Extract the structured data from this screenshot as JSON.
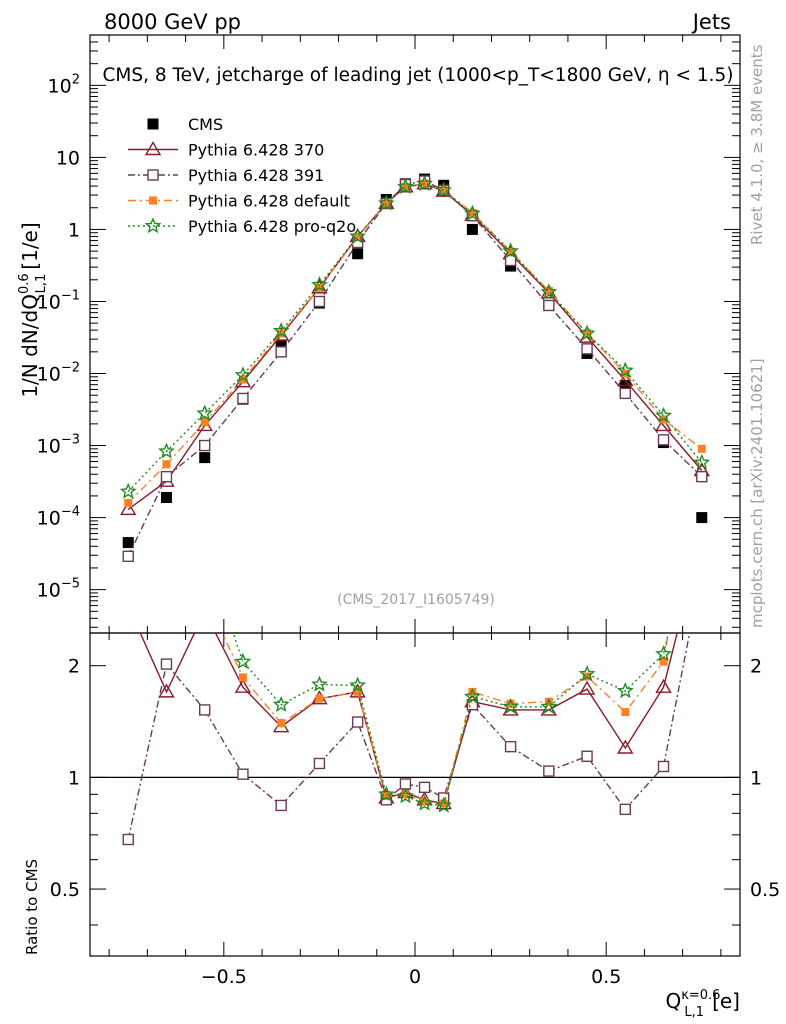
{
  "header": {
    "left": "8000 GeV pp",
    "right": "Jets",
    "title": "CMS, 8 TeV, jetcharge of leading jet (1000<p_T<1800 GeV, η < 1.5)",
    "rivet": "Rivet 4.1.0, ≥ 3.8M events",
    "mcplots": "mcplots.cern.ch [arXiv:2401.10621]",
    "analysis": "(CMS_2017_I1605749)"
  },
  "axes": {
    "ylabel_main": "1/N dN/dQ",
    "ylabel_main_sup": "0.6",
    "ylabel_main_sub": "L,1",
    "ylabel_main_unit": "[1/e]",
    "ylabel_ratio": "Ratio to CMS",
    "xlabel": "Q",
    "xlabel_sup": "κ=0.6",
    "xlabel_sub": "L,1",
    "xlabel_unit": "[e]"
  },
  "colors": {
    "data": "#000000",
    "p370": "#8b1a2b",
    "p391": "#6b3a55",
    "pdefault": "#ff7f24",
    "proq2": "#1f8b1f"
  },
  "chart_data": {
    "type": "scatter",
    "x": [
      -0.75,
      -0.65,
      -0.55,
      -0.45,
      -0.35,
      -0.25,
      -0.15,
      -0.075,
      -0.025,
      0.025,
      0.075,
      0.15,
      0.25,
      0.35,
      0.45,
      0.55,
      0.65,
      0.75
    ],
    "xlim": [
      -0.85,
      0.85
    ],
    "ylim_main": [
      2.5e-06,
      500
    ],
    "yscale_main": "log",
    "ylim_ratio": [
      0.33,
      2.45
    ],
    "yscale_ratio": "log",
    "xticks": [
      -0.5,
      0,
      0.5
    ],
    "xtick_labels": [
      "−0.5",
      "0",
      "0.5"
    ],
    "yticks_main": [
      1e-05,
      0.0001,
      0.001,
      0.01,
      0.1,
      1,
      10,
      100
    ],
    "ytick_labels_main": [
      "10^-5",
      "10^-4",
      "10^-3",
      "10^-2",
      "10^-1",
      "1",
      "10",
      "10^2"
    ],
    "yticks_ratio": [
      0.5,
      1,
      2
    ],
    "ytick_labels_ratio": [
      "0.5",
      "1",
      "2"
    ],
    "series": [
      {
        "name": "CMS",
        "key": "data",
        "marker": "square",
        "values": [
          4.5e-05,
          0.00019,
          0.00068,
          0.0044,
          0.025,
          0.095,
          0.46,
          2.6,
          4.3,
          5.0,
          4.1,
          1.0,
          0.31,
          0.088,
          0.019,
          0.0068,
          0.0011,
          0.0001
        ]
      },
      {
        "name": "Pythia 6.428 370",
        "key": "p370",
        "marker": "triangle",
        "dash": "",
        "values": [
          0.00013,
          0.00032,
          0.0019,
          0.0077,
          0.034,
          0.155,
          0.8,
          2.3,
          3.9,
          4.3,
          3.4,
          1.58,
          0.46,
          0.132,
          0.032,
          0.008,
          0.0019,
          0.00045
        ],
        "ratio": [
          2.9,
          1.7,
          2.8,
          1.75,
          1.37,
          1.63,
          1.7,
          0.88,
          0.91,
          0.87,
          0.85,
          1.6,
          1.52,
          1.52,
          1.73,
          1.2,
          1.75,
          4.5
        ]
      },
      {
        "name": "Pythia 6.428 391",
        "key": "p391",
        "marker": "open-square",
        "dash": "7,3,2,3",
        "values": [
          2.9e-05,
          0.00037,
          0.001,
          0.0045,
          0.02,
          0.1,
          0.66,
          2.3,
          4.2,
          4.7,
          3.5,
          1.55,
          0.37,
          0.088,
          0.022,
          0.0053,
          0.0012,
          0.00037
        ],
        "ratio": [
          0.68,
          2.02,
          1.52,
          1.02,
          0.84,
          1.09,
          1.41,
          0.87,
          0.96,
          0.94,
          0.88,
          1.57,
          1.21,
          1.04,
          1.14,
          0.82,
          1.07,
          3.6
        ]
      },
      {
        "name": "Pythia 6.428 default",
        "key": "pdefault",
        "marker": "filled-square",
        "dash": "8,4,2,4",
        "values": [
          0.00016,
          0.00055,
          0.0021,
          0.0083,
          0.036,
          0.155,
          0.78,
          2.3,
          3.9,
          4.3,
          3.5,
          1.7,
          0.49,
          0.14,
          0.036,
          0.01,
          0.0023,
          0.0009
        ],
        "ratio": [
          3.6,
          2.9,
          3.1,
          1.86,
          1.4,
          1.63,
          1.7,
          0.89,
          0.9,
          0.86,
          0.85,
          1.7,
          1.58,
          1.6,
          1.87,
          1.5,
          2.05,
          9.0
        ]
      },
      {
        "name": "Pythia 6.428 pro-q2o",
        "key": "proq2",
        "marker": "star",
        "dash": "2,3",
        "values": [
          0.00023,
          0.00083,
          0.0028,
          0.0095,
          0.039,
          0.17,
          0.8,
          2.3,
          3.9,
          4.3,
          3.5,
          1.66,
          0.5,
          0.135,
          0.036,
          0.011,
          0.0026,
          0.00058
        ],
        "ratio": [
          5.1,
          4.4,
          4.1,
          2.05,
          1.57,
          1.78,
          1.77,
          0.9,
          0.89,
          0.85,
          0.84,
          1.65,
          1.55,
          1.55,
          1.9,
          1.71,
          2.15,
          5.8
        ]
      }
    ]
  }
}
